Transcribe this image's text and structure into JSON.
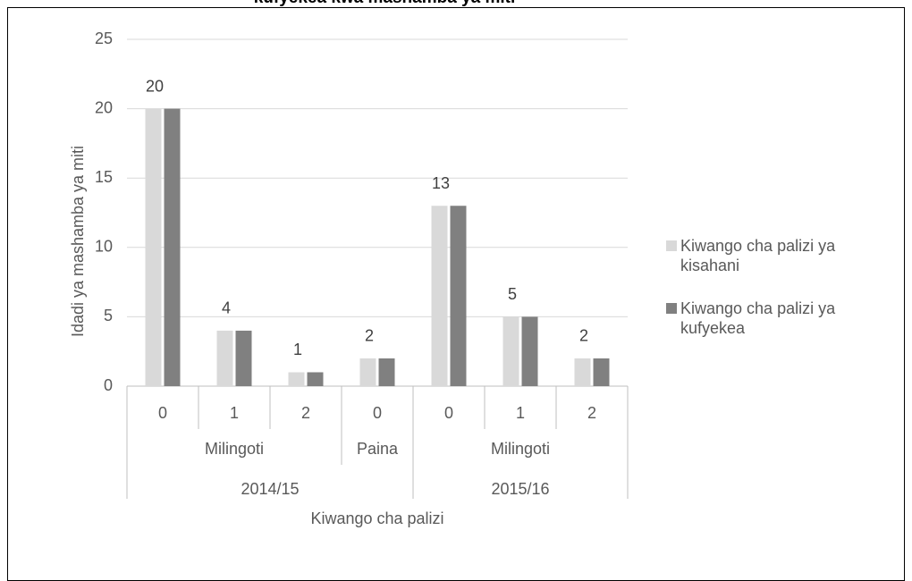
{
  "chart_data": {
    "type": "bar",
    "title": "kufyekea kwa mashamba ya miti",
    "x_label": "Kiwango cha palizi",
    "y_label": "Idadi ya  mashamba ya miti",
    "categories": [
      "0",
      "1",
      "2",
      "0",
      "0",
      "1",
      "2"
    ],
    "category_groups": [
      [
        {
          "label": "Milingoti",
          "span": 3
        },
        {
          "label": "Paina",
          "span": 1
        },
        {
          "label": "Milingoti",
          "span": 3
        }
      ],
      [
        {
          "label": "2014/15",
          "span": 4
        },
        {
          "label": "2015/16",
          "span": 3
        }
      ]
    ],
    "series": [
      {
        "name": "Kiwango cha palizi ya kisahani",
        "color": "#d9d9d9",
        "values": [
          20,
          4,
          1,
          2,
          13,
          5,
          2
        ]
      },
      {
        "name": "Kiwango cha palizi ya kufyekea",
        "color": "#808080",
        "values": [
          20,
          4,
          1,
          2,
          13,
          5,
          2
        ]
      }
    ],
    "ylim": [
      0,
      25
    ],
    "yticks": [
      0,
      5,
      10,
      15,
      20,
      25
    ],
    "grid": true,
    "legend": "right"
  }
}
